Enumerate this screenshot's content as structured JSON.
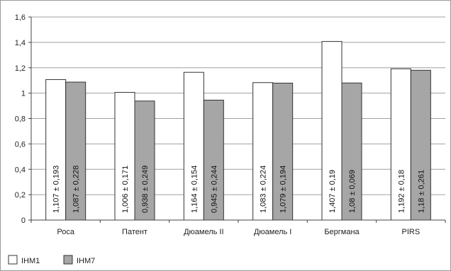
{
  "chart_data": {
    "type": "bar",
    "categories": [
      "Роса",
      "Патент",
      "Дюамель II",
      "Дюамель I",
      "Бергмана",
      "PIRS"
    ],
    "series": [
      {
        "name": "IHM1",
        "values": [
          1.107,
          1.006,
          1.164,
          1.083,
          1.407,
          1.192
        ],
        "labels": [
          "1,107 ± 0,193",
          "1,006 ± 0,171",
          "1,164 ± 0,154",
          "1,083 ± 0,224",
          "1,407 ± 0,19",
          "1,192 ± 0,18"
        ],
        "color": "#ffffff"
      },
      {
        "name": "IHM7",
        "values": [
          1.087,
          0.938,
          0.945,
          1.079,
          1.08,
          1.18
        ],
        "labels": [
          "1,087 ± 0,228",
          "0,938 ± 0,249",
          "0,945 ± 0,244",
          "1,079 ± 0,194",
          "1,08 ± 0,069",
          "1,18 ± 0,261"
        ],
        "color": "#a6a6a6"
      }
    ],
    "ylim": [
      0,
      1.6
    ],
    "yticks": [
      0,
      0.2,
      0.4,
      0.6,
      0.8,
      1,
      1.2,
      1.4,
      1.6
    ],
    "ytick_labels": [
      "0",
      "0,2",
      "0,4",
      "0,6",
      "0,8",
      "1",
      "1,2",
      "1,4",
      "1,6"
    ],
    "grid": true,
    "legend_position": "bottom-left"
  }
}
